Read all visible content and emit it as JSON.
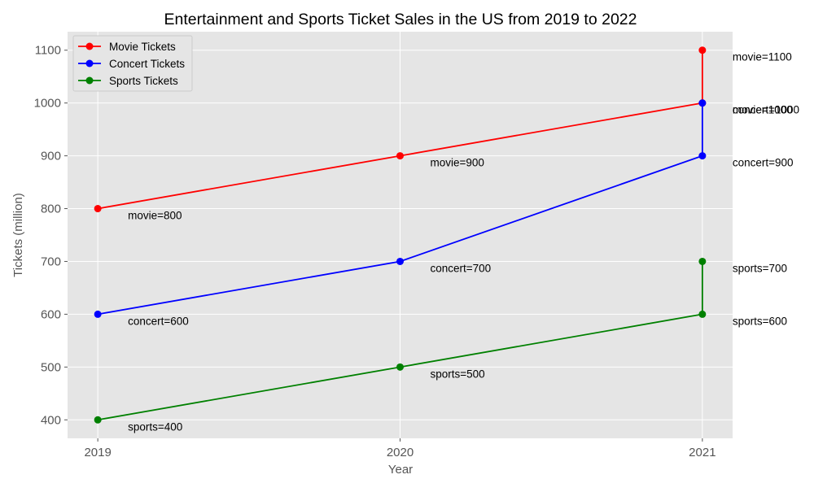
{
  "chart_data": {
    "type": "line",
    "title": "Entertainment and Sports Ticket Sales in the US from 2019 to 2022",
    "xlabel": "Year",
    "ylabel": "Tickets (million)",
    "x_ticks": [
      "2019",
      "2020",
      "2021"
    ],
    "x_range": [
      2018.9,
      2021.1
    ],
    "ylim": [
      365,
      1135
    ],
    "y_ticks": [
      400,
      500,
      600,
      700,
      800,
      900,
      1000,
      1100
    ],
    "grid": true,
    "legend_position": "top-left",
    "series": [
      {
        "name": "Movie Tickets",
        "color": "#ff0000",
        "x": [
          2019,
          2020,
          2021,
          2021
        ],
        "y": [
          800,
          900,
          1000,
          1100
        ],
        "labels": [
          "movie=800",
          "movie=900",
          "movie=1000",
          "movie=1100"
        ]
      },
      {
        "name": "Concert Tickets",
        "color": "#0000ff",
        "x": [
          2019,
          2020,
          2021,
          2021
        ],
        "y": [
          600,
          700,
          900,
          1000
        ],
        "labels": [
          "concert=600",
          "concert=700",
          "concert=900",
          "concert=1000"
        ]
      },
      {
        "name": "Sports Tickets",
        "color": "#008000",
        "x": [
          2019,
          2020,
          2021,
          2021
        ],
        "y": [
          400,
          500,
          600,
          700
        ],
        "labels": [
          "sports=400",
          "sports=500",
          "sports=600",
          "sports=700"
        ]
      }
    ]
  }
}
